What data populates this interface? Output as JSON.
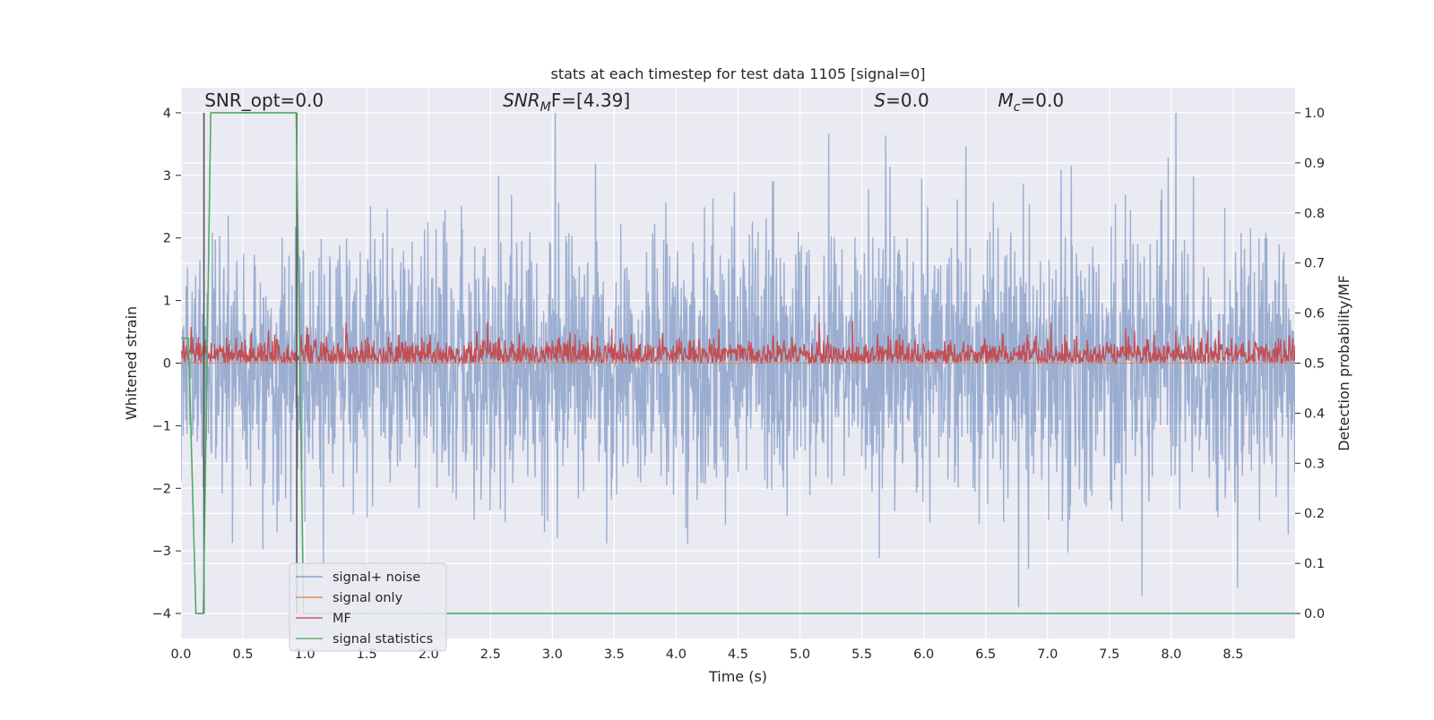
{
  "chart_data": {
    "type": "line",
    "title": "stats at each timestep for test data 1105 [signal=0]",
    "xlabel": "Time (s)",
    "ylabel": "Whitened strain",
    "y2label": "Detection probability/MF",
    "xlim": [
      0,
      9.0
    ],
    "ylim": [
      -4.4,
      4.4
    ],
    "y2lim": [
      -0.05,
      1.05
    ],
    "x_ticks": [
      "0.0",
      "0.5",
      "1.0",
      "1.5",
      "2.0",
      "2.5",
      "3.0",
      "3.5",
      "4.0",
      "4.5",
      "5.0",
      "5.5",
      "6.0",
      "6.5",
      "7.0",
      "7.5",
      "8.0",
      "8.5"
    ],
    "y_ticks": [
      "4",
      "3",
      "2",
      "1",
      "0",
      "−1",
      "−2",
      "−3",
      "−4"
    ],
    "y2_ticks": [
      "1.0",
      "0.9",
      "0.8",
      "0.7",
      "0.6",
      "0.5",
      "0.4",
      "0.3",
      "0.2",
      "0.1",
      "0.0"
    ],
    "grid": true,
    "legend_position": "lower-left",
    "annotations": {
      "snr_opt": {
        "label": "SNR_opt=0.0",
        "x": 0.19,
        "y": 4.1
      },
      "snr_mf": {
        "base": "SNR",
        "sub": "M",
        "rest": "F=[4.39]",
        "x": 2.6,
        "y": 4.1
      },
      "s": {
        "base": "S",
        "rest": "=0.0",
        "x": 5.6,
        "y": 4.1
      },
      "mc": {
        "base": "M",
        "sub": "c",
        "rest": "=0.0",
        "x": 6.6,
        "y": 4.1
      }
    },
    "vlines": [
      {
        "x": 0.185,
        "ymin": -4.0,
        "ymax": 4.0
      },
      {
        "x": 0.935,
        "ymin": -4.0,
        "ymax": 4.0
      }
    ],
    "series": [
      {
        "name": "signal+ noise",
        "color": "#4c72b0",
        "axis": "left",
        "kind": "noise",
        "y_min_approx": -3.9,
        "y_max_approx": 4.0,
        "description": "dense white-noise strain"
      },
      {
        "name": "signal only",
        "color": "#dd8452",
        "axis": "left",
        "x": [
          0,
          9.0
        ],
        "y": [
          0,
          0
        ]
      },
      {
        "name": "MF",
        "color": "#c44e52",
        "axis": "right",
        "kind": "noise",
        "y_min_approx": 0.5,
        "y_max_approx": 0.6
      },
      {
        "name": "signal statistics",
        "color": "#55a868",
        "axis": "right",
        "x": [
          0.0,
          0.06,
          0.12,
          0.18,
          0.24,
          0.93,
          0.99,
          1.05,
          9.0
        ],
        "y": [
          0.55,
          0.55,
          0.0,
          0.0,
          1.0,
          1.0,
          0.0,
          0.0,
          0.0
        ]
      }
    ]
  },
  "colors": {
    "axes_bg": "#eaeaf2",
    "grid": "#ffffff",
    "noise": "#4c72b0",
    "signal_only": "#dd8452",
    "mf": "#c44e52",
    "stats": "#55a868",
    "vline": "#555555"
  }
}
